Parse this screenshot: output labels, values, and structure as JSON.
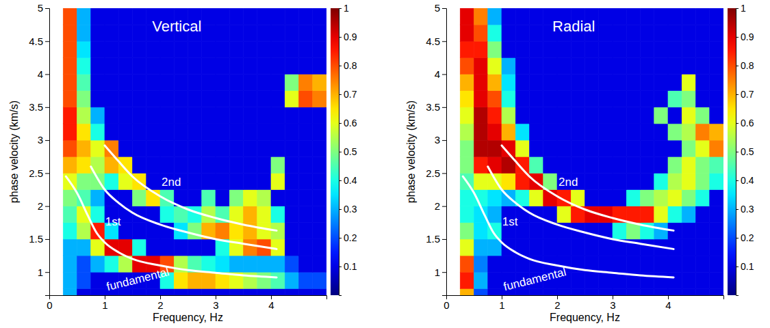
{
  "chart_data": [
    {
      "type": "heatmap",
      "title": "Vertical",
      "x_label": "Frequency, Hz",
      "y_label": "phase velocity (km/s)",
      "xlim": [
        0,
        5
      ],
      "ylim": [
        0.65,
        5
      ],
      "xticks": [
        0,
        1,
        2,
        3,
        4
      ],
      "yticks": [
        1,
        1.5,
        2,
        2.5,
        3,
        3.5,
        4,
        4.5,
        5
      ],
      "x_edges": [
        0,
        0.25,
        0.5,
        0.75,
        1,
        1.25,
        1.5,
        1.75,
        2,
        2.25,
        2.5,
        2.75,
        3,
        3.25,
        3.5,
        3.75,
        4,
        4.25,
        4.5,
        4.75,
        5
      ],
      "y_edges": [
        0.65,
        0.75,
        1,
        1.25,
        1.5,
        1.75,
        2,
        2.25,
        2.5,
        2.75,
        3,
        3.25,
        3.5,
        3.75,
        4,
        4.25,
        4.5,
        4.75,
        5
      ],
      "z": [
        [
          null,
          0.3,
          0.1,
          0.1,
          0.1,
          0.1,
          0.1,
          0.1,
          0.1,
          0.1,
          0.1,
          0.1,
          0.1,
          0.1,
          0.1,
          0.1,
          0.1,
          0.1,
          0.1,
          0.1
        ],
        [
          null,
          0.3,
          0.2,
          0.1,
          0.1,
          0.1,
          0.1,
          0.1,
          0.4,
          0.65,
          0.7,
          0.7,
          0.65,
          0.6,
          0.55,
          0.5,
          0.45,
          0.3,
          0.2,
          0.2
        ],
        [
          null,
          0.3,
          0.2,
          0.3,
          0.4,
          0.55,
          0.9,
          0.9,
          0.8,
          0.55,
          0.45,
          0.4,
          0.35,
          0.3,
          0.3,
          0.3,
          0.3,
          0.2,
          0.1,
          0.1
        ],
        [
          null,
          0.3,
          0.3,
          0.6,
          0.9,
          0.9,
          0.4,
          0.1,
          0.1,
          0.1,
          0.1,
          0.1,
          0.4,
          0.6,
          0.75,
          0.8,
          0.6,
          0.1,
          0.1,
          0.1
        ],
        [
          null,
          0.4,
          0.55,
          0.85,
          0.35,
          0.1,
          0.1,
          0.1,
          0.1,
          0.35,
          0.5,
          0.7,
          0.75,
          0.65,
          0.7,
          0.6,
          0.55,
          0.1,
          0.1,
          0.1
        ],
        [
          null,
          0.45,
          0.6,
          0.4,
          0.1,
          0.1,
          0.1,
          0.1,
          0.4,
          0.45,
          0.4,
          0.55,
          0.45,
          0.6,
          0.7,
          0.6,
          0.4,
          0.1,
          0.1,
          0.1
        ],
        [
          null,
          0.5,
          0.45,
          0.3,
          0.1,
          0.1,
          0.5,
          0.65,
          0.45,
          0.1,
          0.1,
          0.45,
          0.1,
          0.5,
          0.6,
          0.55,
          0.1,
          0.1,
          0.1,
          0.1
        ],
        [
          null,
          0.6,
          0.5,
          0.5,
          0.4,
          0.6,
          0.65,
          0.1,
          0.1,
          0.1,
          0.1,
          0.1,
          0.1,
          0.1,
          0.1,
          0.1,
          0.6,
          0.1,
          0.1,
          0.1
        ],
        [
          null,
          0.7,
          0.65,
          0.55,
          0.7,
          0.65,
          0.1,
          0.1,
          0.1,
          0.1,
          0.1,
          0.1,
          0.1,
          0.1,
          0.1,
          0.1,
          0.5,
          0.1,
          0.1,
          0.1
        ],
        [
          null,
          0.8,
          0.7,
          0.6,
          0.75,
          0.1,
          0.1,
          0.1,
          0.1,
          0.1,
          0.1,
          0.1,
          0.1,
          0.1,
          0.1,
          0.1,
          0.1,
          0.1,
          0.1,
          0.1
        ],
        [
          null,
          0.85,
          0.65,
          0.4,
          0.1,
          0.1,
          0.1,
          0.1,
          0.1,
          0.1,
          0.1,
          0.1,
          0.1,
          0.1,
          0.1,
          0.1,
          0.1,
          0.1,
          0.1,
          0.1
        ],
        [
          null,
          0.85,
          0.55,
          0.3,
          0.1,
          0.1,
          0.1,
          0.1,
          0.1,
          0.1,
          0.1,
          0.1,
          0.1,
          0.1,
          0.1,
          0.1,
          0.1,
          0.1,
          0.1,
          0.1
        ],
        [
          null,
          0.8,
          0.5,
          0.1,
          0.1,
          0.1,
          0.1,
          0.1,
          0.1,
          0.1,
          0.1,
          0.1,
          0.1,
          0.1,
          0.1,
          0.1,
          0.1,
          0.6,
          0.8,
          0.75
        ],
        [
          null,
          0.8,
          0.45,
          0.1,
          0.1,
          0.1,
          0.1,
          0.1,
          0.1,
          0.1,
          0.1,
          0.1,
          0.1,
          0.1,
          0.1,
          0.1,
          0.1,
          0.5,
          0.75,
          0.7
        ],
        [
          null,
          0.8,
          0.4,
          0.1,
          0.1,
          0.1,
          0.1,
          0.1,
          0.1,
          0.1,
          0.1,
          0.1,
          0.1,
          0.1,
          0.1,
          0.1,
          0.1,
          0.1,
          0.1,
          0.1
        ],
        [
          null,
          0.8,
          0.35,
          0.1,
          0.1,
          0.1,
          0.1,
          0.1,
          0.1,
          0.1,
          0.1,
          0.1,
          0.1,
          0.1,
          0.1,
          0.1,
          0.1,
          0.1,
          0.1,
          0.1
        ],
        [
          null,
          0.8,
          0.3,
          0.1,
          0.1,
          0.1,
          0.1,
          0.1,
          0.1,
          0.1,
          0.1,
          0.1,
          0.1,
          0.1,
          0.1,
          0.1,
          0.1,
          0.1,
          0.1,
          0.1
        ],
        [
          null,
          0.8,
          0.3,
          0.1,
          0.1,
          0.1,
          0.1,
          0.1,
          0.1,
          0.1,
          0.1,
          0.1,
          0.1,
          0.1,
          0.1,
          0.1,
          0.1,
          0.1,
          0.1,
          0.1
        ]
      ],
      "colorbar": {
        "range": [
          0,
          1
        ],
        "ticks": [
          0.1,
          0.2,
          0.3,
          0.4,
          0.5,
          0.6,
          0.7,
          0.8,
          0.9,
          1
        ]
      },
      "series": [
        {
          "color": "#ffffff",
          "x": [
            0.3,
            0.5,
            0.7,
            0.85,
            1,
            1.25,
            1.5,
            2,
            2.5,
            3,
            3.5,
            4.1
          ],
          "values": [
            2.45,
            2.2,
            1.85,
            1.6,
            1.45,
            1.3,
            1.2,
            1.1,
            1.03,
            0.99,
            0.95,
            0.92
          ]
        },
        {
          "color": "#ffffff",
          "x": [
            0.75,
            1,
            1.25,
            1.5,
            2,
            2.5,
            3,
            3.5,
            4.1
          ],
          "values": [
            2.6,
            2.25,
            2.05,
            1.9,
            1.72,
            1.6,
            1.5,
            1.43,
            1.35
          ]
        },
        {
          "color": "#ffffff",
          "x": [
            1,
            1.25,
            1.5,
            2,
            2.5,
            3,
            3.5,
            4.1
          ],
          "values": [
            2.92,
            2.68,
            2.45,
            2.15,
            1.95,
            1.82,
            1.72,
            1.63
          ]
        }
      ],
      "annotations": [
        {
          "text": "2nd",
          "x": 2.2,
          "y": 2.35
        },
        {
          "text": "1st",
          "x": 1.15,
          "y": 1.75
        },
        {
          "text": "fundamental",
          "x": 1.6,
          "y": 0.88
        }
      ]
    },
    {
      "type": "heatmap",
      "title": "Radial",
      "x_label": "Frequency, Hz",
      "y_label": "phase velocity (km/s)",
      "xlim": [
        0,
        5
      ],
      "ylim": [
        0.65,
        5
      ],
      "xticks": [
        0,
        1,
        2,
        3,
        4
      ],
      "yticks": [
        1,
        1.5,
        2,
        2.5,
        3,
        3.5,
        4,
        4.5,
        5
      ],
      "x_edges": [
        0,
        0.25,
        0.5,
        0.75,
        1,
        1.25,
        1.5,
        1.75,
        2,
        2.25,
        2.5,
        2.75,
        3,
        3.25,
        3.5,
        3.75,
        4,
        4.25,
        4.5,
        4.75,
        5
      ],
      "y_edges": [
        0.65,
        0.75,
        1,
        1.25,
        1.5,
        1.75,
        2,
        2.25,
        2.5,
        2.75,
        3,
        3.25,
        3.5,
        3.75,
        4,
        4.25,
        4.5,
        4.75,
        5
      ],
      "z": [
        [
          null,
          0.7,
          0.2,
          0.1,
          0.1,
          0.1,
          0.1,
          0.1,
          0.1,
          0.1,
          0.1,
          0.1,
          0.1,
          0.1,
          0.1,
          0.1,
          0.1,
          0.1,
          0.1,
          0.1
        ],
        [
          null,
          0.85,
          0.3,
          0.1,
          0.1,
          0.1,
          0.1,
          0.1,
          0.1,
          0.1,
          0.1,
          0.1,
          0.1,
          0.1,
          0.1,
          0.1,
          0.1,
          0.1,
          0.1,
          0.1
        ],
        [
          null,
          0.8,
          0.25,
          0.1,
          0.1,
          0.1,
          0.1,
          0.1,
          0.1,
          0.1,
          0.1,
          0.1,
          0.1,
          0.1,
          0.1,
          0.1,
          0.1,
          0.1,
          0.1,
          0.1
        ],
        [
          null,
          0.6,
          0.3,
          0.3,
          0.1,
          0.1,
          0.1,
          0.1,
          0.1,
          0.1,
          0.1,
          0.1,
          0.1,
          0.1,
          0.1,
          0.1,
          0.1,
          0.1,
          0.1,
          0.1
        ],
        [
          null,
          0.5,
          0.35,
          0.4,
          0.1,
          0.1,
          0.1,
          0.1,
          0.1,
          0.1,
          0.1,
          0.1,
          0.4,
          0.5,
          0.4,
          0.3,
          0.1,
          0.1,
          0.1,
          0.1
        ],
        [
          null,
          0.4,
          0.35,
          0.3,
          0.1,
          0.1,
          0.1,
          0.1,
          0.6,
          0.85,
          0.9,
          0.9,
          0.85,
          0.85,
          0.85,
          0.6,
          0.4,
          0.3,
          0.1,
          0.1
        ],
        [
          null,
          0.4,
          0.4,
          0.35,
          0.3,
          0.4,
          0.6,
          0.9,
          0.85,
          0.6,
          0.1,
          0.1,
          0.1,
          0.4,
          0.5,
          0.55,
          0.6,
          0.5,
          0.4,
          0.1
        ],
        [
          null,
          0.45,
          0.6,
          0.6,
          0.65,
          0.85,
          0.9,
          0.5,
          0.1,
          0.1,
          0.1,
          0.1,
          0.1,
          0.1,
          0.1,
          0.4,
          0.55,
          0.6,
          0.5,
          0.4
        ],
        [
          null,
          0.5,
          0.85,
          0.9,
          0.95,
          0.85,
          0.45,
          0.1,
          0.1,
          0.1,
          0.1,
          0.1,
          0.1,
          0.1,
          0.1,
          0.1,
          0.5,
          0.6,
          0.5,
          0.45
        ],
        [
          null,
          0.5,
          0.95,
          0.95,
          0.9,
          0.6,
          0.1,
          0.1,
          0.1,
          0.1,
          0.1,
          0.1,
          0.1,
          0.1,
          0.1,
          0.1,
          0.1,
          0.5,
          0.6,
          0.75
        ],
        [
          null,
          0.55,
          0.95,
          0.9,
          0.7,
          0.35,
          0.1,
          0.1,
          0.1,
          0.1,
          0.1,
          0.1,
          0.1,
          0.1,
          0.1,
          0.1,
          0.5,
          0.55,
          0.75,
          0.7
        ],
        [
          null,
          0.6,
          0.95,
          0.85,
          0.55,
          0.1,
          0.1,
          0.1,
          0.1,
          0.1,
          0.1,
          0.1,
          0.1,
          0.1,
          0.1,
          0.5,
          0.1,
          0.6,
          0.5,
          0.1
        ],
        [
          null,
          0.65,
          0.9,
          0.8,
          0.4,
          0.1,
          0.1,
          0.1,
          0.1,
          0.1,
          0.1,
          0.1,
          0.1,
          0.1,
          0.1,
          0.1,
          0.45,
          0.5,
          0.1,
          0.1
        ],
        [
          null,
          0.7,
          0.9,
          0.7,
          0.35,
          0.1,
          0.1,
          0.1,
          0.1,
          0.1,
          0.1,
          0.1,
          0.1,
          0.1,
          0.1,
          0.1,
          0.1,
          0.6,
          0.1,
          0.1
        ],
        [
          null,
          0.8,
          0.9,
          0.6,
          0.3,
          0.1,
          0.1,
          0.1,
          0.1,
          0.1,
          0.1,
          0.1,
          0.1,
          0.1,
          0.1,
          0.1,
          0.1,
          0.1,
          0.1,
          0.1
        ],
        [
          null,
          0.85,
          0.85,
          0.5,
          0.1,
          0.1,
          0.1,
          0.1,
          0.1,
          0.1,
          0.1,
          0.1,
          0.1,
          0.1,
          0.1,
          0.1,
          0.1,
          0.1,
          0.1,
          0.1
        ],
        [
          null,
          0.9,
          0.8,
          0.4,
          0.1,
          0.1,
          0.1,
          0.1,
          0.1,
          0.1,
          0.1,
          0.1,
          0.1,
          0.1,
          0.1,
          0.1,
          0.1,
          0.1,
          0.1,
          0.1
        ],
        [
          null,
          0.9,
          0.75,
          0.3,
          0.1,
          0.1,
          0.1,
          0.1,
          0.1,
          0.1,
          0.1,
          0.1,
          0.1,
          0.1,
          0.1,
          0.1,
          0.1,
          0.1,
          0.1,
          0.1
        ]
      ],
      "colorbar": {
        "range": [
          0,
          1
        ],
        "ticks": [
          0.1,
          0.2,
          0.3,
          0.4,
          0.5,
          0.6,
          0.7,
          0.8,
          0.9,
          1
        ]
      },
      "series": [
        {
          "color": "#ffffff",
          "x": [
            0.3,
            0.5,
            0.7,
            0.85,
            1,
            1.25,
            1.5,
            2,
            2.5,
            3,
            3.5,
            4.1
          ],
          "values": [
            2.45,
            2.2,
            1.85,
            1.6,
            1.45,
            1.3,
            1.2,
            1.1,
            1.03,
            0.99,
            0.95,
            0.92
          ]
        },
        {
          "color": "#ffffff",
          "x": [
            0.75,
            1,
            1.25,
            1.5,
            2,
            2.5,
            3,
            3.5,
            4.1
          ],
          "values": [
            2.6,
            2.25,
            2.05,
            1.9,
            1.72,
            1.6,
            1.5,
            1.43,
            1.35
          ]
        },
        {
          "color": "#ffffff",
          "x": [
            1,
            1.25,
            1.5,
            2,
            2.5,
            3,
            3.5,
            4.1
          ],
          "values": [
            2.92,
            2.68,
            2.45,
            2.15,
            1.95,
            1.82,
            1.72,
            1.63
          ]
        }
      ],
      "annotations": [
        {
          "text": "2nd",
          "x": 2.2,
          "y": 2.35
        },
        {
          "text": "1st",
          "x": 1.15,
          "y": 1.75
        },
        {
          "text": "fundamental",
          "x": 1.6,
          "y": 0.88
        }
      ]
    }
  ]
}
